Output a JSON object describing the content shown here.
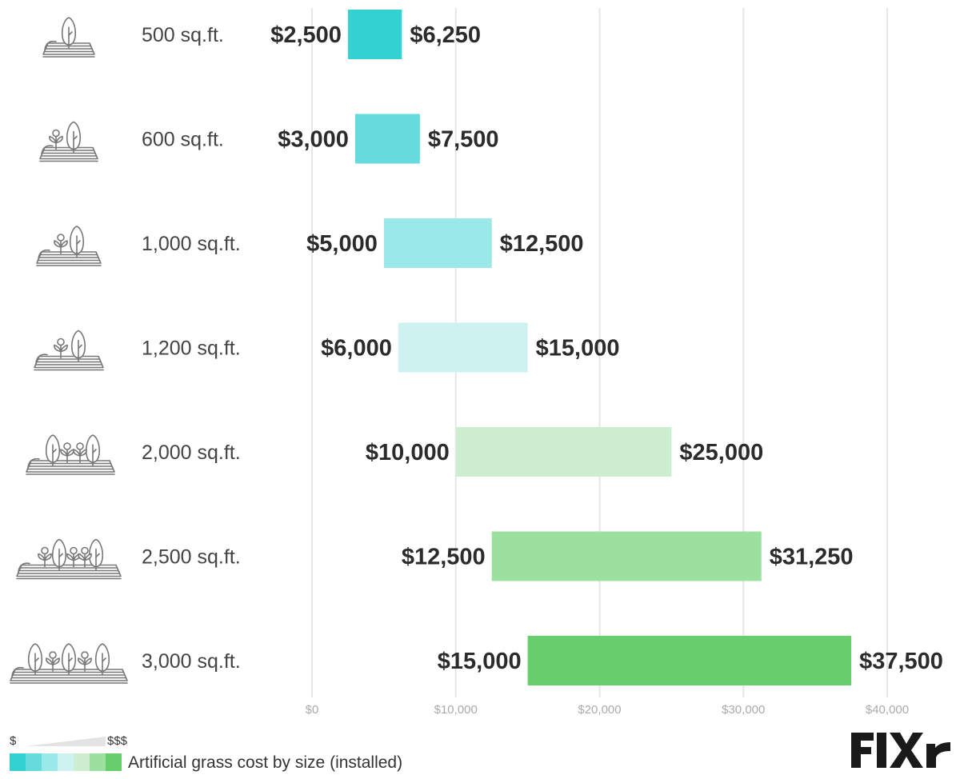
{
  "chart_data": {
    "type": "bar",
    "orientation": "horizontal-range",
    "categories": [
      "500 sq.ft.",
      "600 sq.ft.",
      "1,000 sq.ft.",
      "1,200 sq.ft.",
      "2,000 sq.ft.",
      "2,500 sq.ft.",
      "3,000 sq.ft."
    ],
    "series": [
      {
        "low": 2500,
        "high": 6250,
        "low_label": "$2,500",
        "high_label": "$6,250",
        "color": "#33d1d1"
      },
      {
        "low": 3000,
        "high": 7500,
        "low_label": "$3,000",
        "high_label": "$7,500",
        "color": "#66dbdd"
      },
      {
        "low": 5000,
        "high": 12500,
        "low_label": "$5,000",
        "high_label": "$12,500",
        "color": "#9ae8e8"
      },
      {
        "low": 6000,
        "high": 15000,
        "low_label": "$6,000",
        "high_label": "$15,000",
        "color": "#cdf2f0"
      },
      {
        "low": 10000,
        "high": 25000,
        "low_label": "$10,000",
        "high_label": "$25,000",
        "color": "#cdeed1"
      },
      {
        "low": 12500,
        "high": 31250,
        "low_label": "$12,500",
        "high_label": "$31,250",
        "color": "#9be09e"
      },
      {
        "low": 15000,
        "high": 37500,
        "low_label": "$15,000",
        "high_label": "$37,500",
        "color": "#66cf6c"
      }
    ],
    "xlim": [
      0,
      42000
    ],
    "xticks": [
      0,
      10000,
      20000,
      30000,
      40000
    ],
    "xtick_labels": [
      "$0",
      "$10,000",
      "$20,000",
      "$30,000",
      "$40,000"
    ],
    "grid": "vertical",
    "icon_names": [
      "lawn-1-tree-icon",
      "lawn-1-tree-1-sprout-icon",
      "lawn-1-tree-1-sprout-icon",
      "lawn-1-tree-1-sprout-icon",
      "lawn-2-trees-2-sprouts-icon",
      "lawn-3-trees-2-sprouts-icon",
      "lawn-3-trees-3-sprouts-icon"
    ]
  },
  "legend": {
    "low_label": "$",
    "high_label": "$$$",
    "title": "Artificial grass cost by size (installed)",
    "swatch_colors": [
      "#33d1d1",
      "#66dbdd",
      "#9ae8e8",
      "#cdf2f0",
      "#cdeed1",
      "#9be09e",
      "#66cf6c"
    ]
  },
  "logo": {
    "text": "FIXr",
    "color": "#1a1a1a"
  }
}
